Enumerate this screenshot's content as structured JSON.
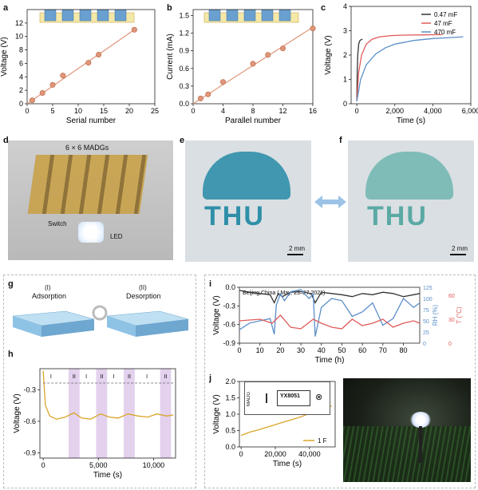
{
  "panels": {
    "a": "a",
    "b": "b",
    "c": "c",
    "d": "d",
    "e": "e",
    "f": "f",
    "g": "g",
    "h": "h",
    "i": "i",
    "j": "j"
  },
  "photo_d": {
    "title": "6 × 6 MADGs",
    "switch_label": "Switch",
    "led_label": "LED"
  },
  "photo_e": {
    "text": "THU",
    "scale": "2 mm"
  },
  "photo_f": {
    "text": "THU",
    "scale": "2 mm"
  },
  "schematic_g": {
    "step1": "(I)",
    "step1_name": "Adsorption",
    "step2": "(II)",
    "step2_name": "Desorption"
  },
  "circuit_j": {
    "chip": "YX8051",
    "cell": "MADG"
  },
  "colors": {
    "line_fit": "#e0967a",
    "point": "#e0967a",
    "red": "#e05a5a",
    "blue": "#5b8fc9",
    "black": "#333333",
    "gold": "#d9a52a",
    "purple_band": "#dcc5ea"
  },
  "chart_data": [
    {
      "panel": "a",
      "type": "scatter",
      "xlabel": "Serial number",
      "ylabel": "Voltage (V)",
      "xlim": [
        0,
        25
      ],
      "ylim": [
        0,
        14
      ],
      "xticks": [
        "0",
        "5",
        "10",
        "15",
        "20",
        "25"
      ],
      "yticks": [
        "0",
        "2",
        "4",
        "6",
        "8",
        "10",
        "12"
      ],
      "x": [
        1,
        3,
        5,
        7,
        12,
        14,
        21
      ],
      "y": [
        0.5,
        1.6,
        2.8,
        4.2,
        6.1,
        7.3,
        11.0
      ],
      "fit": [
        [
          0,
          0
        ],
        [
          21,
          11
        ]
      ]
    },
    {
      "panel": "b",
      "type": "scatter",
      "xlabel": "Parallel number",
      "ylabel": "Current (mA)",
      "xlim": [
        0,
        16
      ],
      "ylim": [
        0,
        1.6
      ],
      "xticks": [
        "0",
        "4",
        "8",
        "12",
        "16"
      ],
      "yticks": [
        "0.0",
        "0.3",
        "0.6",
        "0.9",
        "1.2",
        "1.5"
      ],
      "x": [
        1,
        2,
        4,
        8,
        10,
        12,
        16
      ],
      "y": [
        0.09,
        0.16,
        0.37,
        0.68,
        0.83,
        0.94,
        1.28
      ],
      "fit": [
        [
          0,
          0
        ],
        [
          16,
          1.3
        ]
      ]
    },
    {
      "panel": "c",
      "type": "line",
      "xlabel": "Time (s)",
      "ylabel": "Voltage (V)",
      "xlim": [
        -300,
        6000
      ],
      "ylim": [
        0,
        4
      ],
      "xticks": [
        "0",
        "2,000",
        "4,000",
        "6,000"
      ],
      "yticks": [
        "0",
        "1",
        "2",
        "3",
        "4"
      ],
      "series": [
        {
          "name": "0.47 mF",
          "color": "#333333",
          "x": [
            0,
            20,
            50,
            100,
            150,
            200,
            250,
            300
          ],
          "y": [
            0.1,
            1.2,
            2.0,
            2.45,
            2.58,
            2.62,
            2.64,
            2.65
          ]
        },
        {
          "name": "47 mF",
          "color": "#e05a5a",
          "x": [
            0,
            100,
            250,
            500,
            800,
            1200,
            1800,
            2500,
            3500,
            4500
          ],
          "y": [
            0.1,
            1.3,
            2.0,
            2.45,
            2.65,
            2.75,
            2.8,
            2.82,
            2.83,
            2.84
          ]
        },
        {
          "name": "470 mF",
          "color": "#5b8fc9",
          "x": [
            0,
            200,
            500,
            1000,
            1500,
            2000,
            3000,
            4000,
            5000,
            5600
          ],
          "y": [
            0.1,
            1.0,
            1.6,
            2.05,
            2.3,
            2.45,
            2.6,
            2.68,
            2.72,
            2.75
          ]
        }
      ]
    },
    {
      "panel": "h",
      "type": "line",
      "xlabel": "Time (s)",
      "ylabel": "Voltage (V)",
      "xlim": [
        -300,
        12000
      ],
      "ylim": [
        -0.95,
        -0.1
      ],
      "xticks": [
        "0",
        "5,000",
        "10,000"
      ],
      "yticks": [
        "-0.3",
        "-0.6",
        "-0.9"
      ],
      "phase_labels": [
        "I",
        "II",
        "I",
        "II",
        "I",
        "II",
        "I",
        "II"
      ],
      "bands": [
        [
          2300,
          3300
        ],
        [
          4800,
          5800
        ],
        [
          7300,
          8300
        ],
        [
          10600,
          11600
        ]
      ],
      "series": [
        {
          "name": "",
          "color": "#d9a52a",
          "x": [
            0,
            200,
            600,
            1200,
            2000,
            2800,
            3500,
            4300,
            5200,
            6000,
            6800,
            7700,
            8600,
            9500,
            10300,
            11200,
            11800
          ],
          "y": [
            -0.12,
            -0.45,
            -0.55,
            -0.58,
            -0.56,
            -0.52,
            -0.57,
            -0.58,
            -0.53,
            -0.56,
            -0.57,
            -0.53,
            -0.55,
            -0.56,
            -0.53,
            -0.55,
            -0.54
          ]
        }
      ]
    },
    {
      "panel": "i",
      "type": "line",
      "title": "Beijing,China ( May, 23–27,2021)",
      "xlabel": "Time (h)",
      "ylabel": "Voltage (V)",
      "ylabel_right1": "RH (%)",
      "ylabel_right2": "T (°C)",
      "xlim": [
        0,
        88
      ],
      "ylim": [
        -0.9,
        0.0
      ],
      "xticks": [
        "0",
        "10",
        "20",
        "30",
        "40",
        "50",
        "60",
        "70",
        "80"
      ],
      "yticks": [
        "0.0",
        "-0.3",
        "-0.6",
        "-0.9"
      ],
      "rh_ticks": [
        "0",
        "25",
        "50",
        "75",
        "100",
        "125"
      ],
      "t_ticks": [
        "0",
        "30",
        "60"
      ],
      "series": [
        {
          "name": "Voltage",
          "color": "#333333",
          "x": [
            0,
            5,
            10,
            15,
            17,
            19,
            21,
            25,
            30,
            35,
            37,
            40,
            45,
            50,
            55,
            60,
            65,
            70,
            75,
            80,
            85,
            88
          ],
          "y": [
            -0.05,
            -0.08,
            -0.1,
            -0.12,
            -0.25,
            -0.1,
            -0.15,
            -0.08,
            -0.07,
            -0.1,
            -0.25,
            -0.08,
            -0.1,
            -0.12,
            -0.15,
            -0.1,
            -0.12,
            -0.08,
            -0.1,
            -0.15,
            -0.12,
            -0.1
          ]
        },
        {
          "name": "RH",
          "color": "#5b8fc9",
          "axis": "rh",
          "x": [
            0,
            5,
            10,
            15,
            17,
            18,
            20,
            22,
            25,
            30,
            34,
            36,
            37,
            40,
            45,
            50,
            55,
            60,
            65,
            70,
            75,
            80,
            85,
            88
          ],
          "y": [
            30,
            45,
            50,
            55,
            20,
            85,
            110,
            95,
            115,
            120,
            100,
            110,
            15,
            80,
            100,
            95,
            60,
            70,
            90,
            40,
            55,
            100,
            80,
            90
          ]
        },
        {
          "name": "T",
          "color": "#e05a5a",
          "axis": "t",
          "x": [
            0,
            10,
            16,
            20,
            25,
            30,
            36,
            40,
            45,
            50,
            55,
            60,
            65,
            70,
            75,
            80,
            85,
            88
          ],
          "y": [
            28,
            30,
            25,
            35,
            20,
            18,
            30,
            25,
            20,
            18,
            30,
            22,
            25,
            30,
            20,
            25,
            28,
            25
          ]
        }
      ]
    },
    {
      "panel": "j",
      "type": "line",
      "xlabel": "Time (s)",
      "ylabel": "Voltage (V)",
      "xlim": [
        -1000,
        55000
      ],
      "ylim": [
        0,
        2
      ],
      "xticks": [
        "0",
        "20,000",
        "40,000"
      ],
      "yticks": [
        "0.0",
        "0.5",
        "1.0",
        "1.5",
        "2.0"
      ],
      "series": [
        {
          "name": "1 F",
          "color": "#d9a52a",
          "x": [
            0,
            5000,
            10000,
            15000,
            20000,
            25000,
            30000,
            35000,
            40000,
            45000,
            50000,
            53000
          ],
          "y": [
            0.35,
            0.45,
            0.52,
            0.6,
            0.68,
            0.76,
            0.84,
            0.92,
            1.02,
            1.1,
            1.2,
            1.25
          ]
        }
      ]
    }
  ]
}
